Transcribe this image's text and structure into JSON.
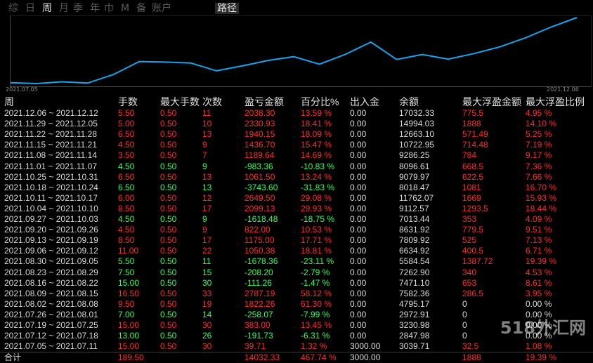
{
  "tabs": [
    {
      "label": "综",
      "active": false
    },
    {
      "label": "日",
      "active": false
    },
    {
      "label": "周",
      "active": true
    },
    {
      "label": "月",
      "active": false
    },
    {
      "label": "季",
      "active": false
    },
    {
      "label": "年",
      "active": false
    },
    {
      "label": "巾",
      "active": false
    },
    {
      "label": "M",
      "active": false
    },
    {
      "label": "备",
      "active": false
    },
    {
      "label": "账户",
      "active": false
    },
    {
      "label": "路径",
      "active": false
    }
  ],
  "chart_data": {
    "type": "line",
    "x_start_label": "2021.07.05",
    "x_end_label": "2021.12.06",
    "color": "#1aa3e8",
    "x": [
      "2021.07.05",
      "2021.07.12",
      "2021.07.19",
      "2021.07.26",
      "2021.08.02",
      "2021.08.09",
      "2021.08.16",
      "2021.08.23",
      "2021.08.30",
      "2021.09.06",
      "2021.09.13",
      "2021.09.20",
      "2021.09.27",
      "2021.10.04",
      "2021.10.11",
      "2021.10.18",
      "2021.10.25",
      "2021.11.01",
      "2021.11.08",
      "2021.11.15",
      "2021.11.22",
      "2021.11.29",
      "2021.12.06"
    ],
    "values": [
      3039.71,
      2847.98,
      3230.98,
      2972.91,
      4795.17,
      7582.36,
      7471.1,
      7262.9,
      5584.54,
      6634.92,
      7809.92,
      8631.92,
      7013.44,
      9112.57,
      11762.07,
      8018.47,
      9079.97,
      8096.61,
      9286.25,
      10722.95,
      12663.1,
      14994.03,
      17032.33
    ]
  },
  "table": {
    "headers": [
      "周",
      "手数",
      "最大手数",
      "次数",
      "盈亏金额",
      "百分比%",
      "出入金",
      "余额",
      "最大浮盈金额",
      "最大浮盈比例"
    ],
    "rows": [
      [
        "2021.12.06 ~ 2021.12.12",
        "5.50",
        "0.50",
        "11",
        "2038.30",
        "13.59 %",
        "0.00",
        "17032.33",
        "775.5",
        "4.95 %"
      ],
      [
        "2021.11.29 ~ 2021.12.05",
        "5.00",
        "0.50",
        "10",
        "2330.93",
        "18.41 %",
        "0.00",
        "14994.03",
        "1888",
        "14.10 %"
      ],
      [
        "2021.11.22 ~ 2021.11.28",
        "6.50",
        "0.50",
        "13",
        "1940.15",
        "18.09 %",
        "0.00",
        "12663.10",
        "571.49",
        "5.25 %"
      ],
      [
        "2021.11.15 ~ 2021.11.21",
        "4.50",
        "0.50",
        "9",
        "1436.70",
        "15.47 %",
        "0.00",
        "10722.95",
        "714.48",
        "7.19 %"
      ],
      [
        "2021.11.08 ~ 2021.11.14",
        "3.50",
        "0.50",
        "7",
        "1189.64",
        "14.69 %",
        "0.00",
        "9286.25",
        "784",
        "9.17 %"
      ],
      [
        "2021.11.01 ~ 2021.11.07",
        "4.50",
        "0.50",
        "9",
        "-983.36",
        "-10.83 %",
        "0.00",
        "8096.61",
        "668.5",
        "7.36 %"
      ],
      [
        "2021.10.25 ~ 2021.10.31",
        "6.50",
        "0.50",
        "13",
        "1061.50",
        "13.24 %",
        "0.00",
        "9079.97",
        "622.5",
        "7.66 %"
      ],
      [
        "2021.10.18 ~ 2021.10.24",
        "6.50",
        "0.50",
        "13",
        "-3743.60",
        "-31.83 %",
        "0.00",
        "8018.47",
        "1081",
        "16.70 %"
      ],
      [
        "2021.10.11 ~ 2021.10.17",
        "6.00",
        "0.50",
        "12",
        "2649.50",
        "29.08 %",
        "0.00",
        "11762.07",
        "1669",
        "15.93 %"
      ],
      [
        "2021.10.04 ~ 2021.10.10",
        "8.50",
        "0.50",
        "17",
        "2099.13",
        "29.93 %",
        "0.00",
        "9112.57",
        "1293.5",
        "18.44 %"
      ],
      [
        "2021.09.27 ~ 2021.10.03",
        "4.50",
        "0.50",
        "9",
        "-1618.48",
        "-18.75 %",
        "0.00",
        "7013.44",
        "353",
        "4.09 %"
      ],
      [
        "2021.09.20 ~ 2021.09.26",
        "4.50",
        "0.50",
        "9",
        "822.00",
        "10.53 %",
        "0.00",
        "8631.92",
        "779.5",
        "9.51 %"
      ],
      [
        "2021.09.13 ~ 2021.09.19",
        "8.50",
        "0.50",
        "17",
        "1175.00",
        "17.71 %",
        "0.00",
        "7809.92",
        "525",
        "7.13 %"
      ],
      [
        "2021.09.06 ~ 2021.09.12",
        "11.00",
        "0.50",
        "22",
        "1050.38",
        "18.81 %",
        "0.00",
        "6634.92",
        "400.5",
        "6.71 %"
      ],
      [
        "2021.08.30 ~ 2021.09.05",
        "5.50",
        "0.50",
        "11",
        "-1678.36",
        "-23.11 %",
        "0.00",
        "5584.54",
        "1387.72",
        "19.39 %"
      ],
      [
        "2021.08.23 ~ 2021.08.29",
        "7.50",
        "0.50",
        "15",
        "-208.20",
        "-2.79 %",
        "0.00",
        "7262.90",
        "340",
        "4.53 %"
      ],
      [
        "2021.08.16 ~ 2021.08.22",
        "15.00",
        "0.50",
        "30",
        "-111.26",
        "-1.47 %",
        "0.00",
        "7471.10",
        "653",
        "8.61 %"
      ],
      [
        "2021.08.09 ~ 2021.08.15",
        "16.50",
        "0.50",
        "33",
        "2787.19",
        "58.12 %",
        "0.00",
        "7582.36",
        "286.5",
        "3.95 %"
      ],
      [
        "2021.08.02 ~ 2021.08.08",
        "9.50",
        "0.50",
        "19",
        "1822.26",
        "61.30 %",
        "0.00",
        "4795.17",
        "0",
        "0.00 %"
      ],
      [
        "2021.07.26 ~ 2021.08.01",
        "7.00",
        "0.50",
        "14",
        "-258.07",
        "-7.99 %",
        "0.00",
        "2972.91",
        "0",
        "0.00 %"
      ],
      [
        "2021.07.19 ~ 2021.07.25",
        "15.00",
        "0.50",
        "30",
        "383.00",
        "13.45 %",
        "0.00",
        "3230.98",
        "0",
        "0.00 %"
      ],
      [
        "2021.07.12 ~ 2021.07.18",
        "13.00",
        "0.50",
        "26",
        "-191.73",
        "-6.31 %",
        "0.00",
        "2847.98",
        "0",
        "0.00 %"
      ],
      [
        "2021.07.05 ~ 2021.07.11",
        "15.00",
        "0.50",
        "30",
        "39.71",
        "1.32 %",
        "3000.00",
        "3039.71",
        "32.5",
        "1.08 %"
      ]
    ],
    "total": [
      "合计",
      "189.50",
      "",
      "",
      "14032.33",
      "467.74 %",
      "3000.00",
      "",
      "1888",
      "19.39 %"
    ]
  },
  "watermark": "518外汇网"
}
